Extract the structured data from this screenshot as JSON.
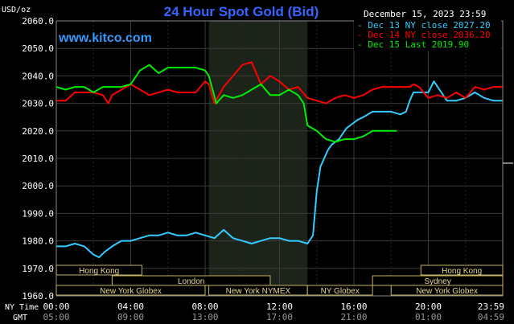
{
  "title": "24 Hour Spot Gold (Bid)",
  "date_label": "December 15, 2023 23:59",
  "watermark": "www.kitco.com",
  "unit_label": "USD/oz",
  "legend": [
    {
      "label": "Dec 13 NY close 2027.20",
      "color": "#33ccff"
    },
    {
      "label": "Dec 14 NY close 2036.20",
      "color": "#ff0000"
    },
    {
      "label": "Dec 15 Last 2019.90",
      "color": "#00ee00"
    }
  ],
  "row_labels": {
    "ny": "NY Time",
    "gmt": "GMT"
  },
  "sessions_top": [
    {
      "label": "Hong Kong",
      "start": 0,
      "end": 4.6
    },
    {
      "label": "Hong Kong",
      "start": 19.6,
      "end": 24
    }
  ],
  "sessions_mid": [
    {
      "label": "London",
      "start": 3.0,
      "end": 11.5
    },
    {
      "label": "Sydney",
      "start": 17.0,
      "end": 24
    }
  ],
  "sessions_bottom": [
    {
      "label": "New York Globex",
      "start": 0,
      "end": 8.0
    },
    {
      "label": "New York NYMEX",
      "start": 8.2,
      "end": 13.5
    },
    {
      "label": "NY Globex",
      "start": 13.5,
      "end": 17.0
    },
    {
      "label": "New York Globex",
      "start": 18.0,
      "end": 24
    }
  ],
  "chart_data": {
    "type": "line",
    "title": "24 Hour Spot Gold (Bid)",
    "ylabel": "USD/oz",
    "ylim": [
      1960,
      2060
    ],
    "xlim": [
      0,
      24
    ],
    "y_ticks": [
      "2060.0",
      "2050.0",
      "2040.0",
      "2030.0",
      "2020.0",
      "2010.0",
      "2000.0",
      "1990.0",
      "1980.0",
      "1970.0",
      "1960.0"
    ],
    "y_tick_values": [
      2060,
      2050,
      2040,
      2030,
      2020,
      2010,
      2000,
      1990,
      1980,
      1970,
      1960
    ],
    "x_ticks_ny": [
      "00:00",
      "04:00",
      "08:00",
      "12:00",
      "16:00",
      "20:00",
      "23:59"
    ],
    "x_ticks_gmt": [
      "05:00",
      "09:00",
      "13:00",
      "17:00",
      "21:00",
      "01:00",
      "04:59"
    ],
    "x_tick_values": [
      0,
      4,
      8,
      12,
      16,
      20,
      24
    ],
    "highlight_range": [
      8.2,
      13.5
    ],
    "grid": true,
    "legend_position": "top-right",
    "series": [
      {
        "name": "Dec 13 NY close 2027.20",
        "color": "#33ccff",
        "x": [
          0,
          0.5,
          1,
          1.5,
          2,
          2.3,
          2.6,
          3,
          3.5,
          4,
          4.5,
          5,
          5.5,
          6,
          6.5,
          7,
          7.5,
          8,
          8.5,
          9,
          9.5,
          10,
          10.5,
          11,
          11.5,
          12,
          12.5,
          13,
          13.5,
          13.8,
          14,
          14.2,
          14.4,
          14.6,
          14.8,
          15,
          15.2,
          15.4,
          15.6,
          15.8,
          16,
          16.2,
          16.5,
          17,
          17.5,
          18,
          18.5,
          18.8,
          19,
          19.2,
          19.5,
          20,
          20.3,
          20.6,
          21,
          21.5,
          22,
          22.5,
          23,
          23.5,
          24
        ],
        "y": [
          1978,
          1978,
          1979,
          1978,
          1975,
          1974,
          1976,
          1978,
          1980,
          1980,
          1981,
          1982,
          1982,
          1983,
          1982,
          1982,
          1983,
          1982,
          1981,
          1984,
          1981,
          1980,
          1979,
          1980,
          1981,
          1981,
          1980,
          1980,
          1979,
          1982,
          1998,
          2007,
          2010,
          2013,
          2015,
          2016,
          2017,
          2019,
          2021,
          2022,
          2023,
          2024,
          2025,
          2027,
          2027,
          2027,
          2026,
          2027,
          2031,
          2034,
          2034,
          2034,
          2038,
          2035,
          2031,
          2031,
          2032,
          2034,
          2032,
          2031,
          2031
        ]
      },
      {
        "name": "Dec 14 NY close 2036.20",
        "color": "#ff0000",
        "x": [
          0,
          0.5,
          1,
          1.5,
          2,
          2.5,
          2.8,
          3,
          3.5,
          4,
          4.5,
          5,
          5.5,
          6,
          6.5,
          7,
          7.5,
          8,
          8.2,
          8.5,
          9,
          9.5,
          10,
          10.5,
          11,
          11.5,
          12,
          12.5,
          13,
          13.5,
          14,
          14.5,
          15,
          15.5,
          16,
          16.5,
          17,
          17.5,
          18,
          18.5,
          19,
          19.2,
          19.5,
          20,
          20.5,
          21,
          21.5,
          22,
          22.5,
          23,
          23.5,
          24
        ],
        "y": [
          2031,
          2031,
          2034,
          2034,
          2034,
          2033,
          2030,
          2033,
          2035,
          2037,
          2035,
          2033,
          2034,
          2035,
          2034,
          2034,
          2034,
          2038,
          2037,
          2030,
          2036,
          2040,
          2044,
          2045,
          2037,
          2040,
          2038,
          2035,
          2036,
          2032,
          2031,
          2030,
          2032,
          2033,
          2032,
          2033,
          2035,
          2036,
          2036,
          2036,
          2036,
          2037,
          2036,
          2032,
          2033,
          2032,
          2034,
          2032,
          2036,
          2035,
          2036,
          2036
        ]
      },
      {
        "name": "Dec 15 Last 2019.90",
        "color": "#00ee00",
        "x": [
          0,
          0.5,
          1,
          1.5,
          2,
          2.5,
          3,
          3.5,
          4,
          4.5,
          5,
          5.5,
          6,
          6.5,
          7,
          7.5,
          8,
          8.2,
          8.4,
          8.6,
          9,
          9.5,
          10,
          10.5,
          11,
          11.5,
          12,
          12.5,
          13,
          13.3,
          13.5,
          14,
          14.5,
          15,
          15.5,
          16,
          16.5,
          17,
          17.5,
          18,
          18.3
        ],
        "y": [
          2036,
          2035,
          2036,
          2036,
          2034,
          2036,
          2036,
          2036,
          2037,
          2042,
          2044,
          2041,
          2043,
          2043,
          2043,
          2043,
          2042,
          2040,
          2035,
          2030,
          2033,
          2032,
          2033,
          2035,
          2037,
          2033,
          2033,
          2035,
          2033,
          2030,
          2022,
          2020,
          2017,
          2016,
          2017,
          2017,
          2018,
          2020,
          2020,
          2020,
          2020
        ]
      }
    ]
  }
}
